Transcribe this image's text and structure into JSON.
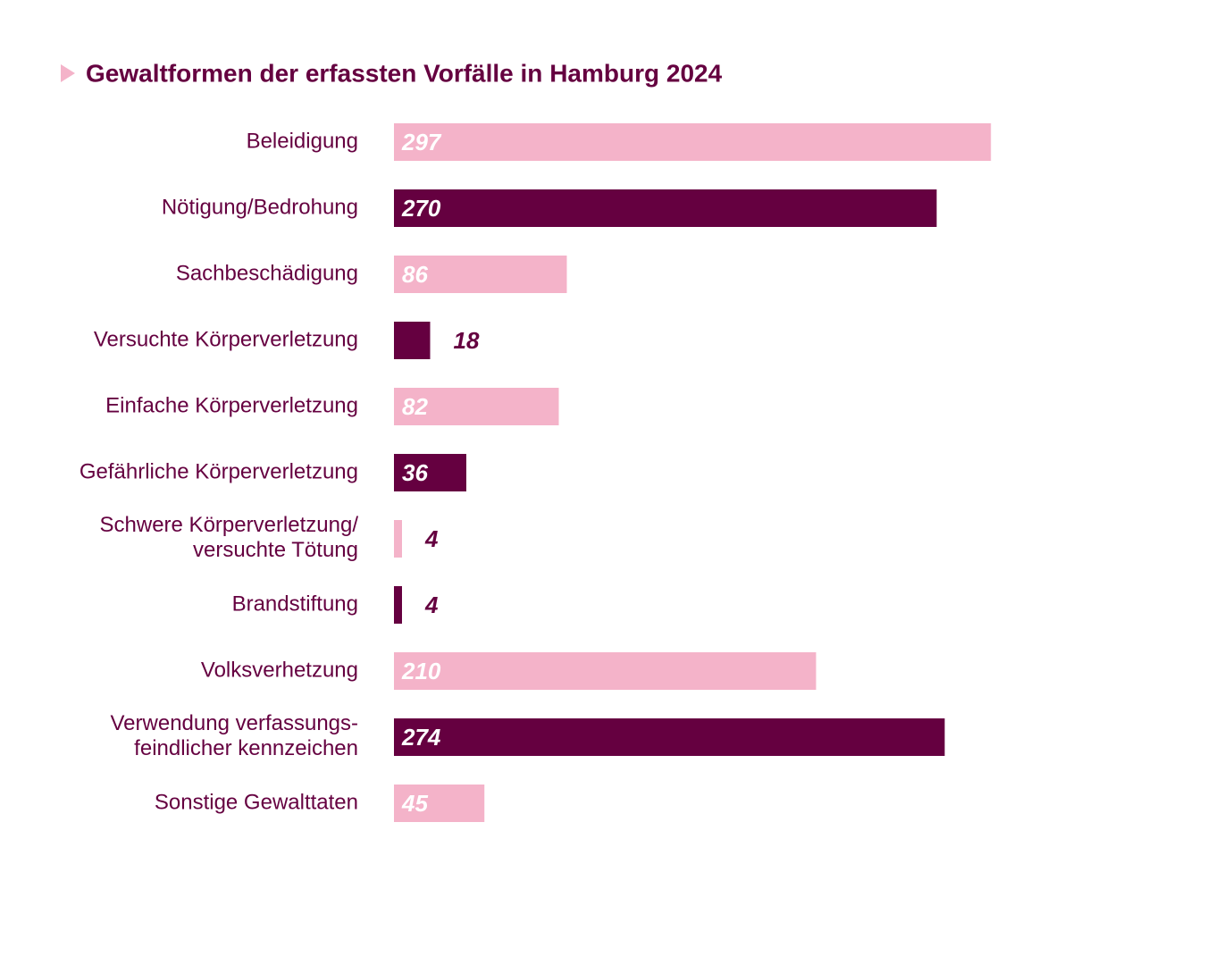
{
  "chart_data": {
    "type": "bar",
    "orientation": "horizontal",
    "title": "Gewaltformen der erfassten Vorfälle in Hamburg 2024",
    "categories": [
      "Beleidigung",
      "Nötigung/Bedrohung",
      "Sachbeschädigung",
      "Versuchte Körperverletzung",
      "Einfache Körperverletzung",
      "Gefährliche Körperverletzung",
      [
        "Schwere Körperverletzung/",
        "versuchte Tötung"
      ],
      "Brandstiftung",
      "Volksverhetzung",
      [
        "Verwendung verfassungs-",
        "feindlicher kennzeichen"
      ],
      "Sonstige Gewalttaten"
    ],
    "values": [
      297,
      270,
      86,
      18,
      82,
      36,
      4,
      4,
      210,
      274,
      45
    ],
    "colors": [
      "#f4b3c9",
      "#650040",
      "#f4b3c9",
      "#650040",
      "#f4b3c9",
      "#650040",
      "#f4b3c9",
      "#650040",
      "#f4b3c9",
      "#650040",
      "#f4b3c9"
    ]
  }
}
